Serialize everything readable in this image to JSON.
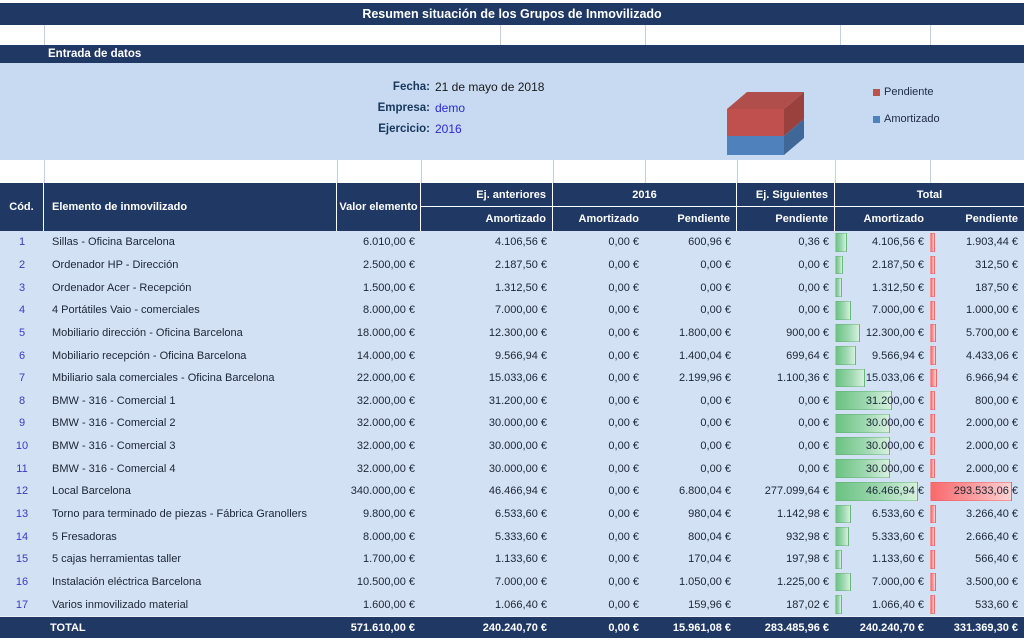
{
  "title": "Resumen situación de los Grupos de Inmovilizado",
  "section_header": "Entrada de datos",
  "form": {
    "fecha_label": "Fecha:",
    "fecha_value": "21 de mayo de 2018",
    "empresa_label": "Empresa:",
    "empresa_value": "demo",
    "ejercicio_label": "Ejercicio:",
    "ejercicio_value": "2016"
  },
  "colors": {
    "header_navy": "#1F3864",
    "panel_blue": "#C7DAF1",
    "row_blue": "#D2E1F3",
    "pendiente_red": "#C0504D",
    "amortizado_blue": "#4F81BD",
    "databar_green": "#6BC282",
    "databar_red": "#F9696D",
    "code_link_blue": "#3A3AC8"
  },
  "legend": {
    "items": [
      {
        "label": "Pendiente",
        "color": "#C0504D"
      },
      {
        "label": "Amortizado",
        "color": "#4F81BD"
      }
    ]
  },
  "chart_data": {
    "type": "bar",
    "subtype": "3d-stacked-cube",
    "title": "",
    "categories": [
      "Total"
    ],
    "series": [
      {
        "name": "Pendiente",
        "values": [
          331369.3
        ],
        "color": "#C0504D"
      },
      {
        "name": "Amortizado",
        "values": [
          240240.7
        ],
        "color": "#4F81BD"
      }
    ],
    "legend_position": "right"
  },
  "table": {
    "header": {
      "cod": "Cód.",
      "elemento": "Elemento de inmovilizado",
      "valor": "Valor elemento",
      "g_ej_anteriores": "Ej. anteriores",
      "g_2016": "2016",
      "g_ej_siguientes": "Ej. Siguientes",
      "g_total": "Total",
      "sub_ej_ant_amortizado": "Amortizado",
      "sub_2016_amortizado": "Amortizado",
      "sub_2016_pendiente": "Pendiente",
      "sub_ej_sig_pendiente": "Pendiente",
      "sub_total_amortizado": "Amortizado",
      "sub_total_pendiente": "Pendiente"
    },
    "rows": [
      {
        "cod": "1",
        "elemento": "Sillas - Oficina Barcelona",
        "valor": "6.010,00 €",
        "ej_ant_amort": "4.106,56 €",
        "a2016_amort": "0,00 €",
        "a2016_pend": "600,96 €",
        "ej_sig_pend": "0,36 €",
        "total_amort": "4.106,56 €",
        "total_pend": "1.903,44 €",
        "total_amort_num": 4106.56,
        "total_pend_num": 1903.44
      },
      {
        "cod": "2",
        "elemento": "Ordenador HP - Dirección",
        "valor": "2.500,00 €",
        "ej_ant_amort": "2.187,50 €",
        "a2016_amort": "0,00 €",
        "a2016_pend": "0,00 €",
        "ej_sig_pend": "0,00 €",
        "total_amort": "2.187,50 €",
        "total_pend": "312,50 €",
        "total_amort_num": 2187.5,
        "total_pend_num": 312.5
      },
      {
        "cod": "3",
        "elemento": "Ordenador Acer - Recepción",
        "valor": "1.500,00 €",
        "ej_ant_amort": "1.312,50 €",
        "a2016_amort": "0,00 €",
        "a2016_pend": "0,00 €",
        "ej_sig_pend": "0,00 €",
        "total_amort": "1.312,50 €",
        "total_pend": "187,50 €",
        "total_amort_num": 1312.5,
        "total_pend_num": 187.5
      },
      {
        "cod": "4",
        "elemento": "4 Portátiles Vaio - comerciales",
        "valor": "8.000,00 €",
        "ej_ant_amort": "7.000,00 €",
        "a2016_amort": "0,00 €",
        "a2016_pend": "0,00 €",
        "ej_sig_pend": "0,00 €",
        "total_amort": "7.000,00 €",
        "total_pend": "1.000,00 €",
        "total_amort_num": 7000.0,
        "total_pend_num": 1000.0
      },
      {
        "cod": "5",
        "elemento": "Mobiliario dirección - Oficina Barcelona",
        "valor": "18.000,00 €",
        "ej_ant_amort": "12.300,00 €",
        "a2016_amort": "0,00 €",
        "a2016_pend": "1.800,00 €",
        "ej_sig_pend": "900,00 €",
        "total_amort": "12.300,00 €",
        "total_pend": "5.700,00 €",
        "total_amort_num": 12300.0,
        "total_pend_num": 5700.0
      },
      {
        "cod": "6",
        "elemento": "Mobiliario recepción - Oficina Barcelona",
        "valor": "14.000,00 €",
        "ej_ant_amort": "9.566,94 €",
        "a2016_amort": "0,00 €",
        "a2016_pend": "1.400,04 €",
        "ej_sig_pend": "699,64 €",
        "total_amort": "9.566,94 €",
        "total_pend": "4.433,06 €",
        "total_amort_num": 9566.94,
        "total_pend_num": 4433.06
      },
      {
        "cod": "7",
        "elemento": "Mbiliario sala comerciales - Oficina Barcelona",
        "valor": "22.000,00 €",
        "ej_ant_amort": "15.033,06 €",
        "a2016_amort": "0,00 €",
        "a2016_pend": "2.199,96 €",
        "ej_sig_pend": "1.100,36 €",
        "total_amort": "15.033,06 €",
        "total_pend": "6.966,94 €",
        "total_amort_num": 15033.06,
        "total_pend_num": 6966.94
      },
      {
        "cod": "8",
        "elemento": "BMW - 316 - Comercial 1",
        "valor": "32.000,00 €",
        "ej_ant_amort": "31.200,00 €",
        "a2016_amort": "0,00 €",
        "a2016_pend": "0,00 €",
        "ej_sig_pend": "0,00 €",
        "total_amort": "31.200,00 €",
        "total_pend": "800,00 €",
        "total_amort_num": 31200.0,
        "total_pend_num": 800.0
      },
      {
        "cod": "9",
        "elemento": "BMW - 316 - Comercial 2",
        "valor": "32.000,00 €",
        "ej_ant_amort": "30.000,00 €",
        "a2016_amort": "0,00 €",
        "a2016_pend": "0,00 €",
        "ej_sig_pend": "0,00 €",
        "total_amort": "30.000,00 €",
        "total_pend": "2.000,00 €",
        "total_amort_num": 30000.0,
        "total_pend_num": 2000.0
      },
      {
        "cod": "10",
        "elemento": "BMW - 316 - Comercial 3",
        "valor": "32.000,00 €",
        "ej_ant_amort": "30.000,00 €",
        "a2016_amort": "0,00 €",
        "a2016_pend": "0,00 €",
        "ej_sig_pend": "0,00 €",
        "total_amort": "30.000,00 €",
        "total_pend": "2.000,00 €",
        "total_amort_num": 30000.0,
        "total_pend_num": 2000.0
      },
      {
        "cod": "11",
        "elemento": "BMW - 316 - Comercial 4",
        "valor": "32.000,00 €",
        "ej_ant_amort": "30.000,00 €",
        "a2016_amort": "0,00 €",
        "a2016_pend": "0,00 €",
        "ej_sig_pend": "0,00 €",
        "total_amort": "30.000,00 €",
        "total_pend": "2.000,00 €",
        "total_amort_num": 30000.0,
        "total_pend_num": 2000.0
      },
      {
        "cod": "12",
        "elemento": "Local Barcelona",
        "valor": "340.000,00 €",
        "ej_ant_amort": "46.466,94 €",
        "a2016_amort": "0,00 €",
        "a2016_pend": "6.800,04 €",
        "ej_sig_pend": "277.099,64 €",
        "total_amort": "46.466,94 €",
        "total_pend": "293.533,06 €",
        "total_amort_num": 46466.94,
        "total_pend_num": 293533.06
      },
      {
        "cod": "13",
        "elemento": "Torno para terminado de piezas - Fábrica Granollers",
        "valor": "9.800,00 €",
        "ej_ant_amort": "6.533,60 €",
        "a2016_amort": "0,00 €",
        "a2016_pend": "980,04 €",
        "ej_sig_pend": "1.142,98 €",
        "total_amort": "6.533,60 €",
        "total_pend": "3.266,40 €",
        "total_amort_num": 6533.6,
        "total_pend_num": 3266.4
      },
      {
        "cod": "14",
        "elemento": "5 Fresadoras",
        "valor": "8.000,00 €",
        "ej_ant_amort": "5.333,60 €",
        "a2016_amort": "0,00 €",
        "a2016_pend": "800,04 €",
        "ej_sig_pend": "932,98 €",
        "total_amort": "5.333,60 €",
        "total_pend": "2.666,40 €",
        "total_amort_num": 5333.6,
        "total_pend_num": 2666.4
      },
      {
        "cod": "15",
        "elemento": "5 cajas herramientas taller",
        "valor": "1.700,00 €",
        "ej_ant_amort": "1.133,60 €",
        "a2016_amort": "0,00 €",
        "a2016_pend": "170,04 €",
        "ej_sig_pend": "197,98 €",
        "total_amort": "1.133,60 €",
        "total_pend": "566,40 €",
        "total_amort_num": 1133.6,
        "total_pend_num": 566.4
      },
      {
        "cod": "16",
        "elemento": "Instalación eléctrica Barcelona",
        "valor": "10.500,00 €",
        "ej_ant_amort": "7.000,00 €",
        "a2016_amort": "0,00 €",
        "a2016_pend": "1.050,00 €",
        "ej_sig_pend": "1.225,00 €",
        "total_amort": "7.000,00 €",
        "total_pend": "3.500,00 €",
        "total_amort_num": 7000.0,
        "total_pend_num": 3500.0
      },
      {
        "cod": "17",
        "elemento": "Varios inmovilizado material",
        "valor": "1.600,00 €",
        "ej_ant_amort": "1.066,40 €",
        "a2016_amort": "0,00 €",
        "a2016_pend": "159,96 €",
        "ej_sig_pend": "187,02 €",
        "total_amort": "1.066,40 €",
        "total_pend": "533,60 €",
        "total_amort_num": 1066.4,
        "total_pend_num": 533.6
      }
    ],
    "total": {
      "label": "TOTAL",
      "valor": "571.610,00 €",
      "ej_ant_amort": "240.240,70 €",
      "a2016_amort": "0,00 €",
      "a2016_pend": "15.961,08 €",
      "ej_sig_pend": "283.485,96 €",
      "total_amort": "240.240,70 €",
      "total_pend": "331.369,30 €"
    }
  }
}
